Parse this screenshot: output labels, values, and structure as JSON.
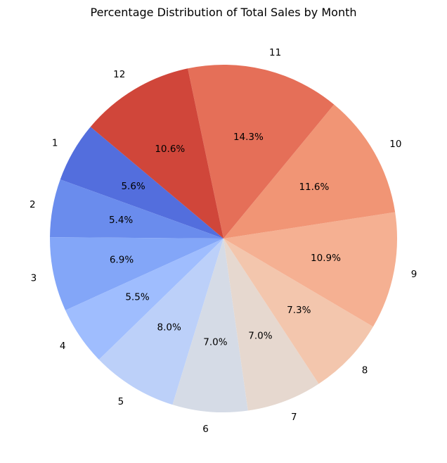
{
  "chart_data": {
    "type": "pie",
    "title": "Percentage Distribution of Total Sales by Month",
    "labels": [
      "1",
      "2",
      "3",
      "4",
      "5",
      "6",
      "7",
      "8",
      "9",
      "10",
      "11",
      "12"
    ],
    "values": [
      5.6,
      5.4,
      6.9,
      5.5,
      8.0,
      7.0,
      7.0,
      7.3,
      10.9,
      11.6,
      14.3,
      10.6
    ],
    "value_labels": [
      "5.6%",
      "5.4%",
      "6.9%",
      "5.5%",
      "8.0%",
      "7.0%",
      "7.0%",
      "7.3%",
      "10.9%",
      "11.6%",
      "14.3%",
      "10.6%"
    ],
    "colors": [
      "#536edd",
      "#6a8ced",
      "#83a6f8",
      "#9fbdfe",
      "#bcd0f9",
      "#d5dbe6",
      "#e6d8cf",
      "#f3c6ad",
      "#f5b092",
      "#f19575",
      "#e56f58",
      "#d0463a"
    ],
    "start_angle_deg": 140,
    "direction": "counterclockwise",
    "legend": "none"
  }
}
